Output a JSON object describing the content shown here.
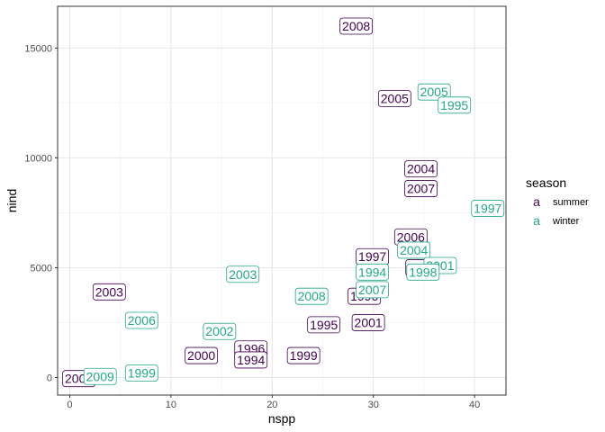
{
  "chart_data": {
    "type": "scatter",
    "title": "",
    "xlabel": "nspp",
    "ylabel": "nind",
    "xlim": [
      -1.2,
      43.1
    ],
    "ylim": [
      -800,
      16900
    ],
    "xticks": [
      0,
      10,
      20,
      30,
      40
    ],
    "yticks": [
      0,
      5000,
      10000,
      15000
    ],
    "x_tick_labels": [
      "0",
      "10",
      "20",
      "30",
      "40"
    ],
    "y_tick_labels": [
      "0",
      "5000",
      "10000",
      "15000"
    ],
    "grid": true,
    "legend": {
      "title": "season",
      "position": "right",
      "key_glyph": "a"
    },
    "series": [
      {
        "name": "summer",
        "color": "#440154",
        "points": [
          {
            "x": 28.3,
            "y": 16000,
            "label": "2008"
          },
          {
            "x": 32.1,
            "y": 12700,
            "label": "2005"
          },
          {
            "x": 34.7,
            "y": 9500,
            "label": "2004"
          },
          {
            "x": 34.7,
            "y": 8600,
            "label": "2007"
          },
          {
            "x": 33.7,
            "y": 6400,
            "label": "2006"
          },
          {
            "x": 29.9,
            "y": 5500,
            "label": "1997"
          },
          {
            "x": 34.8,
            "y": 5000,
            "label": "2002"
          },
          {
            "x": 29.1,
            "y": 3700,
            "label": "1996"
          },
          {
            "x": 29.5,
            "y": 2500,
            "label": "2001"
          },
          {
            "x": 25.1,
            "y": 2400,
            "label": "1995"
          },
          {
            "x": 3.9,
            "y": 3900,
            "label": "2003"
          },
          {
            "x": 13.0,
            "y": 1000,
            "label": "2000"
          },
          {
            "x": 23.1,
            "y": 1000,
            "label": "1999"
          },
          {
            "x": 17.9,
            "y": 1300,
            "label": "1996"
          },
          {
            "x": 17.9,
            "y": 800,
            "label": "1994"
          },
          {
            "x": 0.9,
            "y": -50,
            "label": "2009"
          }
        ]
      },
      {
        "name": "winter",
        "color": "#21a887",
        "points": [
          {
            "x": 36.0,
            "y": 13000,
            "label": "2005"
          },
          {
            "x": 38.0,
            "y": 12400,
            "label": "1995"
          },
          {
            "x": 41.3,
            "y": 7700,
            "label": "1997"
          },
          {
            "x": 34.0,
            "y": 5800,
            "label": "2004"
          },
          {
            "x": 36.6,
            "y": 5100,
            "label": "2001"
          },
          {
            "x": 34.9,
            "y": 4800,
            "label": "1998"
          },
          {
            "x": 29.9,
            "y": 4800,
            "label": "1994"
          },
          {
            "x": 29.9,
            "y": 4000,
            "label": "2007"
          },
          {
            "x": 17.1,
            "y": 4700,
            "label": "2003"
          },
          {
            "x": 23.9,
            "y": 3700,
            "label": "2008"
          },
          {
            "x": 7.1,
            "y": 2600,
            "label": "2006"
          },
          {
            "x": 14.8,
            "y": 2100,
            "label": "2002"
          },
          {
            "x": 7.1,
            "y": 200,
            "label": "1999"
          },
          {
            "x": 3.0,
            "y": 50,
            "label": "2009"
          }
        ]
      }
    ]
  }
}
